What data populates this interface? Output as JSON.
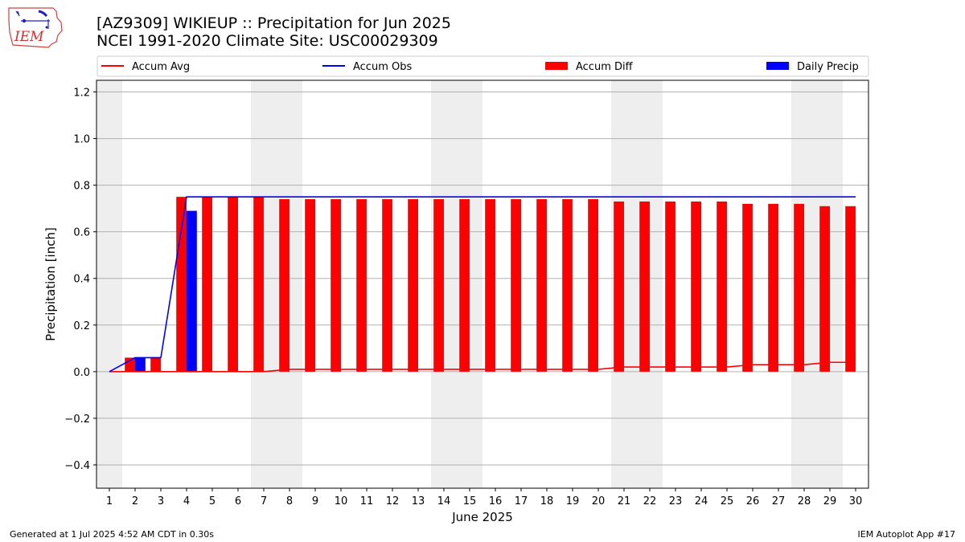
{
  "logo": {
    "text": "IEM"
  },
  "title": {
    "line1": "[AZ9309] WIKIEUP :: Precipitation for Jun 2025",
    "line2": "NCEI 1991-2020 Climate Site: USC00029309"
  },
  "footer": {
    "left": "Generated at 1 Jul 2025 4:52 AM CDT in 0.30s",
    "right": "IEM Autoplot App #17"
  },
  "colors": {
    "accum_avg": "#ff0000",
    "accum_obs": "#0000ff",
    "accum_diff": "#ff0000",
    "daily_precip": "#0000ff",
    "weekend_shade": "#eeeeee",
    "grid": "#b0b0b0"
  },
  "chart_data": {
    "type": "bar",
    "xlabel": "June 2025",
    "ylabel": "Precipitation [inch]",
    "ylim": [
      -0.5,
      1.25
    ],
    "yticks": [
      "−0.4",
      "−0.2",
      "0.0",
      "0.2",
      "0.4",
      "0.6",
      "0.8",
      "1.0",
      "1.2"
    ],
    "ytick_values": [
      -0.4,
      -0.2,
      0.0,
      0.2,
      0.4,
      0.6,
      0.8,
      1.0,
      1.2
    ],
    "x": [
      1,
      2,
      3,
      4,
      5,
      6,
      7,
      8,
      9,
      10,
      11,
      12,
      13,
      14,
      15,
      16,
      17,
      18,
      19,
      20,
      21,
      22,
      23,
      24,
      25,
      26,
      27,
      28,
      29,
      30
    ],
    "xtick_labels": [
      "1",
      "2",
      "3",
      "4",
      "5",
      "6",
      "7",
      "8",
      "9",
      "10",
      "11",
      "12",
      "13",
      "14",
      "15",
      "16",
      "17",
      "18",
      "19",
      "20",
      "21",
      "22",
      "23",
      "24",
      "25",
      "26",
      "27",
      "28",
      "29",
      "30"
    ],
    "weekend_days": [
      1,
      7,
      8,
      14,
      15,
      21,
      22,
      28,
      29
    ],
    "grid": "horizontal",
    "legend_position": "top",
    "legend": [
      "Accum Avg",
      "Accum Obs",
      "Accum Diff",
      "Daily Precip"
    ],
    "series": [
      {
        "name": "Accum Avg",
        "kind": "line",
        "values": [
          0,
          0,
          0,
          0,
          0,
          0,
          0,
          0.01,
          0.01,
          0.01,
          0.01,
          0.01,
          0.01,
          0.01,
          0.01,
          0.01,
          0.01,
          0.01,
          0.01,
          0.01,
          0.02,
          0.02,
          0.02,
          0.02,
          0.02,
          0.03,
          0.03,
          0.03,
          0.04,
          0.04
        ]
      },
      {
        "name": "Accum Obs",
        "kind": "line",
        "values": [
          0,
          0.06,
          0.06,
          0.75,
          0.75,
          0.75,
          0.75,
          0.75,
          0.75,
          0.75,
          0.75,
          0.75,
          0.75,
          0.75,
          0.75,
          0.75,
          0.75,
          0.75,
          0.75,
          0.75,
          0.75,
          0.75,
          0.75,
          0.75,
          0.75,
          0.75,
          0.75,
          0.75,
          0.75,
          0.75
        ]
      },
      {
        "name": "Accum Diff",
        "kind": "bar",
        "values": [
          0,
          0.06,
          0.06,
          0.75,
          0.75,
          0.75,
          0.75,
          0.74,
          0.74,
          0.74,
          0.74,
          0.74,
          0.74,
          0.74,
          0.74,
          0.74,
          0.74,
          0.74,
          0.74,
          0.74,
          0.73,
          0.73,
          0.73,
          0.73,
          0.73,
          0.72,
          0.72,
          0.72,
          0.71,
          0.71
        ]
      },
      {
        "name": "Daily Precip",
        "kind": "bar",
        "values": [
          0,
          0.06,
          0,
          0.69,
          0,
          0,
          0,
          0,
          0,
          0,
          0,
          0,
          0,
          0,
          0,
          0,
          0,
          0,
          0,
          0,
          0,
          0,
          0,
          0,
          0,
          0,
          0,
          0,
          0,
          0
        ]
      }
    ]
  }
}
